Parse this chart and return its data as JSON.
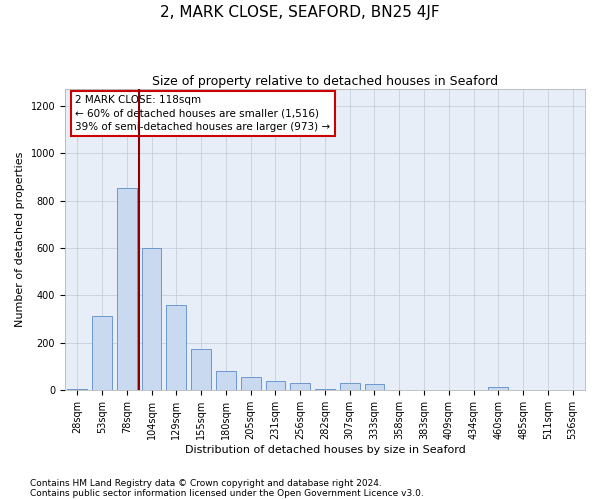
{
  "title": "2, MARK CLOSE, SEAFORD, BN25 4JF",
  "subtitle": "Size of property relative to detached houses in Seaford",
  "xlabel": "Distribution of detached houses by size in Seaford",
  "ylabel": "Number of detached properties",
  "footnote1": "Contains HM Land Registry data © Crown copyright and database right 2024.",
  "footnote2": "Contains public sector information licensed under the Open Government Licence v3.0.",
  "annotation_line1": "2 MARK CLOSE: 118sqm",
  "annotation_line2": "← 60% of detached houses are smaller (1,516)",
  "annotation_line3": "39% of semi-detached houses are larger (973) →",
  "categories": [
    "28sqm",
    "53sqm",
    "78sqm",
    "104sqm",
    "129sqm",
    "155sqm",
    "180sqm",
    "205sqm",
    "231sqm",
    "256sqm",
    "282sqm",
    "307sqm",
    "333sqm",
    "358sqm",
    "383sqm",
    "409sqm",
    "434sqm",
    "460sqm",
    "485sqm",
    "511sqm",
    "536sqm"
  ],
  "values": [
    5,
    315,
    855,
    600,
    360,
    175,
    80,
    55,
    40,
    30,
    5,
    30,
    28,
    0,
    0,
    0,
    0,
    15,
    0,
    0,
    0
  ],
  "bar_color": "#c9d9ef",
  "bar_edge_color": "#5b8cc8",
  "marker_line_color": "#8b0000",
  "annotation_box_edge_color": "#cc0000",
  "background_color": "#ffffff",
  "plot_bg_color": "#e8eef8",
  "grid_color": "#c0c8d8",
  "ylim": [
    0,
    1270
  ],
  "yticks": [
    0,
    200,
    400,
    600,
    800,
    1000,
    1200
  ],
  "title_fontsize": 11,
  "subtitle_fontsize": 9,
  "axis_label_fontsize": 8,
  "tick_fontsize": 7,
  "annotation_fontsize": 7.5,
  "footnote_fontsize": 6.5
}
